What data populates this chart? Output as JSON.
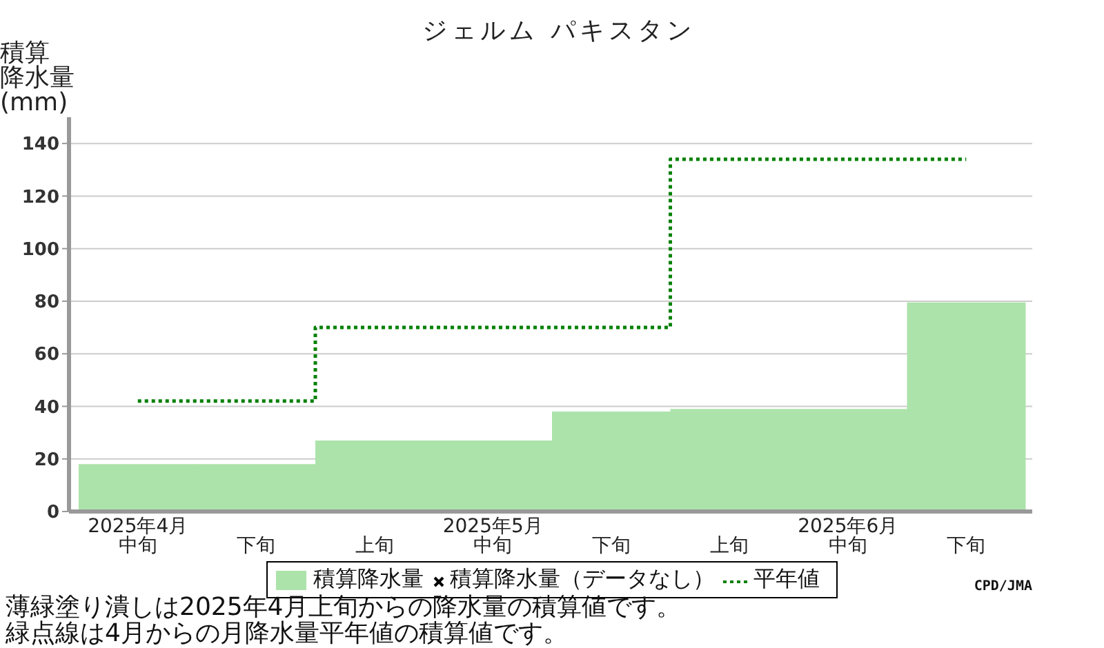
{
  "chart_data": {
    "type": "bar",
    "title": "ジェルム パキスタン",
    "ylabel": "積算降水量(mm)",
    "categories": [
      "2025年4月中旬",
      "下旬",
      "上旬",
      "2025年5月中旬",
      "下旬",
      "上旬",
      "2025年6月中旬",
      "下旬"
    ],
    "series": [
      {
        "name": "積算降水量",
        "color": "#ace3aa",
        "values": [
          18,
          18,
          27,
          27,
          38,
          39,
          39,
          79.5
        ]
      },
      {
        "name": "積算降水量（データなし）",
        "type": "scatter",
        "marker": "cross",
        "color": "#000000",
        "values": [
          null,
          null,
          null,
          null,
          null,
          null,
          null,
          null
        ]
      },
      {
        "name": "平年値",
        "type": "step",
        "line_style": "dotted",
        "color": "#008000",
        "values": [
          42,
          42,
          70,
          70,
          70,
          134,
          134,
          134
        ]
      }
    ],
    "ylim": [
      0,
      150
    ],
    "yticks": [
      0,
      20,
      40,
      60,
      80,
      100,
      120,
      140
    ],
    "grid": "y",
    "legend": "bottom",
    "annotations": [
      "CPD/JMA",
      "薄緑塗り潰しは2025年4月上旬からの降水量の積算値です。",
      "緑点線は4月からの月降水量平年値の積算値です。"
    ]
  }
}
